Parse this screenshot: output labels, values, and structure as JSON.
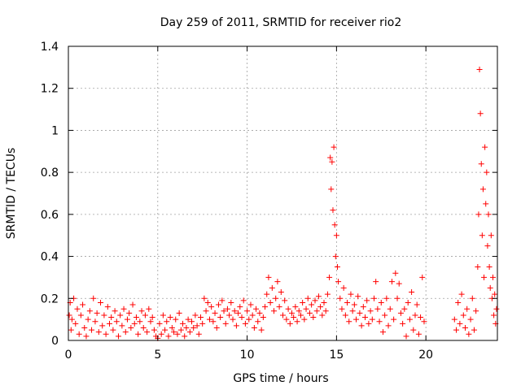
{
  "chart_data": {
    "type": "scatter",
    "title": "Day 259 of 2011, SRMTID for receiver rio2",
    "xlabel": "GPS time / hours",
    "ylabel": "SRMTID / TECUs",
    "xlim": [
      0,
      24
    ],
    "ylim": [
      0,
      1.4
    ],
    "x_ticks": [
      0,
      5,
      10,
      15,
      20
    ],
    "y_ticks": [
      0,
      0.2,
      0.4,
      0.6,
      0.8,
      1,
      1.2,
      1.4
    ],
    "x_tick_labels": [
      "0",
      "5",
      "10",
      "15",
      "20"
    ],
    "y_tick_labels": [
      "0",
      "0.2",
      "0.4",
      "0.6",
      "0.8",
      "1",
      "1.2",
      "1.4"
    ],
    "grid": true,
    "marker": "+",
    "series_color": "#ff0000",
    "series": [
      {
        "name": "rio2",
        "points": [
          [
            0.05,
            0.12
          ],
          [
            0.1,
            0.18
          ],
          [
            0.15,
            0.05
          ],
          [
            0.2,
            0.1
          ],
          [
            0.3,
            0.2
          ],
          [
            0.4,
            0.08
          ],
          [
            0.5,
            0.15
          ],
          [
            0.6,
            0.03
          ],
          [
            0.7,
            0.12
          ],
          [
            0.8,
            0.17
          ],
          [
            0.9,
            0.06
          ],
          [
            1.0,
            0.02
          ],
          [
            1.1,
            0.1
          ],
          [
            1.2,
            0.14
          ],
          [
            1.3,
            0.05
          ],
          [
            1.4,
            0.2
          ],
          [
            1.5,
            0.09
          ],
          [
            1.6,
            0.13
          ],
          [
            1.7,
            0.04
          ],
          [
            1.8,
            0.18
          ],
          [
            1.9,
            0.07
          ],
          [
            2.0,
            0.12
          ],
          [
            2.1,
            0.03
          ],
          [
            2.2,
            0.16
          ],
          [
            2.3,
            0.08
          ],
          [
            2.4,
            0.11
          ],
          [
            2.5,
            0.05
          ],
          [
            2.6,
            0.14
          ],
          [
            2.7,
            0.09
          ],
          [
            2.8,
            0.02
          ],
          [
            2.9,
            0.12
          ],
          [
            3.0,
            0.07
          ],
          [
            3.1,
            0.15
          ],
          [
            3.2,
            0.04
          ],
          [
            3.3,
            0.1
          ],
          [
            3.4,
            0.13
          ],
          [
            3.5,
            0.06
          ],
          [
            3.6,
            0.17
          ],
          [
            3.7,
            0.08
          ],
          [
            3.8,
            0.11
          ],
          [
            3.9,
            0.03
          ],
          [
            4.0,
            0.09
          ],
          [
            4.1,
            0.14
          ],
          [
            4.2,
            0.06
          ],
          [
            4.3,
            0.12
          ],
          [
            4.4,
            0.04
          ],
          [
            4.5,
            0.15
          ],
          [
            4.6,
            0.09
          ],
          [
            4.7,
            0.11
          ],
          [
            4.8,
            0.05
          ],
          [
            4.9,
            0.02
          ],
          [
            5.0,
            0.01
          ],
          [
            5.1,
            0.08
          ],
          [
            5.2,
            0.03
          ],
          [
            5.3,
            0.12
          ],
          [
            5.4,
            0.05
          ],
          [
            5.5,
            0.09
          ],
          [
            5.6,
            0.02
          ],
          [
            5.7,
            0.11
          ],
          [
            5.8,
            0.06
          ],
          [
            5.9,
            0.04
          ],
          [
            6.0,
            0.1
          ],
          [
            6.1,
            0.03
          ],
          [
            6.2,
            0.13
          ],
          [
            6.3,
            0.05
          ],
          [
            6.4,
            0.08
          ],
          [
            6.5,
            0.02
          ],
          [
            6.6,
            0.06
          ],
          [
            6.7,
            0.1
          ],
          [
            6.8,
            0.04
          ],
          [
            6.9,
            0.09
          ],
          [
            7.0,
            0.06
          ],
          [
            7.1,
            0.12
          ],
          [
            7.2,
            0.07
          ],
          [
            7.3,
            0.03
          ],
          [
            7.4,
            0.11
          ],
          [
            7.5,
            0.08
          ],
          [
            7.6,
            0.2
          ],
          [
            7.7,
            0.14
          ],
          [
            7.8,
            0.18
          ],
          [
            7.9,
            0.1
          ],
          [
            8.0,
            0.16
          ],
          [
            8.1,
            0.09
          ],
          [
            8.2,
            0.13
          ],
          [
            8.3,
            0.06
          ],
          [
            8.4,
            0.17
          ],
          [
            8.5,
            0.11
          ],
          [
            8.6,
            0.19
          ],
          [
            8.7,
            0.14
          ],
          [
            8.8,
            0.08
          ],
          [
            8.9,
            0.15
          ],
          [
            9.0,
            0.12
          ],
          [
            9.1,
            0.18
          ],
          [
            9.2,
            0.1
          ],
          [
            9.3,
            0.14
          ],
          [
            9.4,
            0.07
          ],
          [
            9.5,
            0.13
          ],
          [
            9.6,
            0.16
          ],
          [
            9.7,
            0.11
          ],
          [
            9.8,
            0.19
          ],
          [
            9.9,
            0.08
          ],
          [
            10.0,
            0.14
          ],
          [
            10.1,
            0.1
          ],
          [
            10.2,
            0.17
          ],
          [
            10.3,
            0.12
          ],
          [
            10.4,
            0.06
          ],
          [
            10.5,
            0.15
          ],
          [
            10.6,
            0.09
          ],
          [
            10.7,
            0.13
          ],
          [
            10.8,
            0.05
          ],
          [
            10.9,
            0.11
          ],
          [
            11.0,
            0.16
          ],
          [
            11.1,
            0.22
          ],
          [
            11.2,
            0.3
          ],
          [
            11.3,
            0.18
          ],
          [
            11.4,
            0.25
          ],
          [
            11.5,
            0.14
          ],
          [
            11.6,
            0.2
          ],
          [
            11.7,
            0.28
          ],
          [
            11.8,
            0.16
          ],
          [
            11.9,
            0.23
          ],
          [
            12.0,
            0.12
          ],
          [
            12.1,
            0.19
          ],
          [
            12.2,
            0.1
          ],
          [
            12.3,
            0.15
          ],
          [
            12.4,
            0.08
          ],
          [
            12.5,
            0.13
          ],
          [
            12.6,
            0.11
          ],
          [
            12.7,
            0.16
          ],
          [
            12.8,
            0.09
          ],
          [
            12.9,
            0.14
          ],
          [
            13.0,
            0.12
          ],
          [
            13.1,
            0.18
          ],
          [
            13.2,
            0.1
          ],
          [
            13.3,
            0.15
          ],
          [
            13.4,
            0.2
          ],
          [
            13.5,
            0.13
          ],
          [
            13.6,
            0.17
          ],
          [
            13.7,
            0.11
          ],
          [
            13.8,
            0.19
          ],
          [
            13.9,
            0.14
          ],
          [
            14.0,
            0.21
          ],
          [
            14.1,
            0.16
          ],
          [
            14.2,
            0.12
          ],
          [
            14.3,
            0.18
          ],
          [
            14.4,
            0.14
          ],
          [
            14.5,
            0.22
          ],
          [
            14.6,
            0.3
          ],
          [
            14.65,
            0.87
          ],
          [
            14.7,
            0.72
          ],
          [
            14.75,
            0.85
          ],
          [
            14.8,
            0.62
          ],
          [
            14.85,
            0.92
          ],
          [
            14.9,
            0.55
          ],
          [
            14.95,
            0.4
          ],
          [
            15.0,
            0.5
          ],
          [
            15.05,
            0.35
          ],
          [
            15.1,
            0.28
          ],
          [
            15.2,
            0.2
          ],
          [
            15.3,
            0.15
          ],
          [
            15.4,
            0.25
          ],
          [
            15.5,
            0.12
          ],
          [
            15.6,
            0.18
          ],
          [
            15.7,
            0.09
          ],
          [
            15.8,
            0.22
          ],
          [
            15.9,
            0.14
          ],
          [
            16.0,
            0.17
          ],
          [
            16.1,
            0.1
          ],
          [
            16.2,
            0.21
          ],
          [
            16.3,
            0.13
          ],
          [
            16.4,
            0.07
          ],
          [
            16.5,
            0.16
          ],
          [
            16.6,
            0.11
          ],
          [
            16.7,
            0.19
          ],
          [
            16.8,
            0.08
          ],
          [
            16.9,
            0.14
          ],
          [
            17.0,
            0.1
          ],
          [
            17.1,
            0.2
          ],
          [
            17.2,
            0.28
          ],
          [
            17.3,
            0.15
          ],
          [
            17.4,
            0.09
          ],
          [
            17.5,
            0.18
          ],
          [
            17.6,
            0.04
          ],
          [
            17.7,
            0.12
          ],
          [
            17.8,
            0.2
          ],
          [
            17.9,
            0.07
          ],
          [
            18.0,
            0.15
          ],
          [
            18.1,
            0.28
          ],
          [
            18.2,
            0.1
          ],
          [
            18.3,
            0.32
          ],
          [
            18.4,
            0.2
          ],
          [
            18.5,
            0.27
          ],
          [
            18.6,
            0.13
          ],
          [
            18.7,
            0.08
          ],
          [
            18.8,
            0.15
          ],
          [
            18.9,
            0.02
          ],
          [
            19.0,
            0.18
          ],
          [
            19.1,
            0.1
          ],
          [
            19.2,
            0.23
          ],
          [
            19.3,
            0.05
          ],
          [
            19.4,
            0.12
          ],
          [
            19.5,
            0.17
          ],
          [
            19.6,
            0.03
          ],
          [
            19.7,
            0.11
          ],
          [
            19.8,
            0.3
          ],
          [
            19.9,
            0.09
          ],
          [
            21.6,
            0.1
          ],
          [
            21.7,
            0.05
          ],
          [
            21.8,
            0.18
          ],
          [
            21.9,
            0.08
          ],
          [
            22.0,
            0.22
          ],
          [
            22.1,
            0.12
          ],
          [
            22.2,
            0.06
          ],
          [
            22.3,
            0.15
          ],
          [
            22.4,
            0.03
          ],
          [
            22.5,
            0.1
          ],
          [
            22.6,
            0.2
          ],
          [
            22.7,
            0.05
          ],
          [
            22.8,
            0.14
          ],
          [
            22.9,
            0.35
          ],
          [
            22.95,
            0.6
          ],
          [
            23.0,
            1.29
          ],
          [
            23.05,
            1.08
          ],
          [
            23.1,
            0.84
          ],
          [
            23.15,
            0.5
          ],
          [
            23.2,
            0.72
          ],
          [
            23.25,
            0.3
          ],
          [
            23.3,
            0.92
          ],
          [
            23.35,
            0.65
          ],
          [
            23.4,
            0.8
          ],
          [
            23.45,
            0.45
          ],
          [
            23.5,
            0.6
          ],
          [
            23.55,
            0.35
          ],
          [
            23.6,
            0.25
          ],
          [
            23.65,
            0.5
          ],
          [
            23.7,
            0.2
          ],
          [
            23.75,
            0.3
          ],
          [
            23.8,
            0.12
          ],
          [
            23.85,
            0.22
          ],
          [
            23.9,
            0.08
          ],
          [
            23.95,
            0.15
          ]
        ]
      }
    ]
  }
}
